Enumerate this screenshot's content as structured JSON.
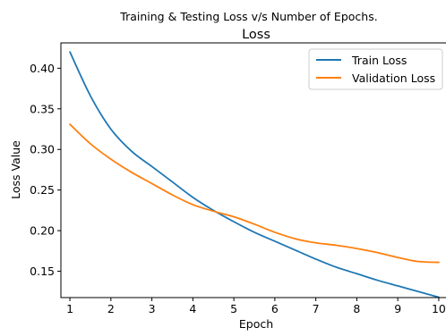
{
  "chart_data": {
    "type": "line",
    "suptitle": "Training & Testing Loss v/s Number of Epochs.",
    "title": "Loss",
    "xlabel": "Epoch",
    "ylabel": "Loss Value",
    "xlim": [
      0.78,
      10.22
    ],
    "ylim": [
      0.1176,
      0.4312
    ],
    "x_ticks": [
      1,
      2,
      3,
      4,
      5,
      6,
      7,
      8,
      9,
      10
    ],
    "y_ticks": [
      0.15,
      0.2,
      0.25,
      0.3,
      0.35,
      0.4
    ],
    "y_tick_labels": [
      "0.15",
      "0.20",
      "0.25",
      "0.30",
      "0.35",
      "0.40"
    ],
    "grid": false,
    "legend_position": "top-right",
    "x": [
      1,
      1.5,
      2,
      2.5,
      3,
      3.5,
      4,
      4.5,
      5,
      5.5,
      6,
      6.5,
      7,
      7.5,
      8,
      8.5,
      9,
      9.5,
      10
    ],
    "series": [
      {
        "name": "Train Loss",
        "color": "#1f77b4",
        "values": [
          0.42,
          0.366,
          0.325,
          0.298,
          0.279,
          0.26,
          0.241,
          0.225,
          0.211,
          0.198,
          0.187,
          0.176,
          0.165,
          0.155,
          0.147,
          0.139,
          0.132,
          0.125,
          0.118
        ]
      },
      {
        "name": "Validation Loss",
        "color": "#ff7f0e",
        "values": [
          0.331,
          0.307,
          0.288,
          0.272,
          0.258,
          0.244,
          0.232,
          0.224,
          0.217,
          0.208,
          0.198,
          0.19,
          0.185,
          0.182,
          0.178,
          0.173,
          0.167,
          0.162,
          0.161
        ]
      }
    ]
  }
}
